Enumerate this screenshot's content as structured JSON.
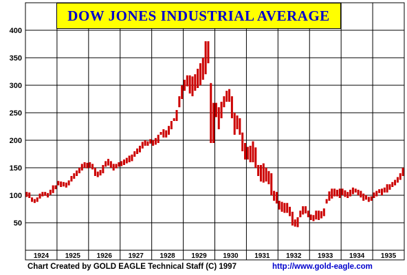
{
  "chart_data": {
    "type": "bar",
    "title": "DOW JONES INDUSTRIAL AVERAGE",
    "xlabel": "",
    "ylabel": "",
    "ylim": [
      0,
      400
    ],
    "yticks": [
      50,
      100,
      150,
      200,
      250,
      300,
      350,
      400
    ],
    "year_labels": [
      "1924",
      "1925",
      "1926",
      "1927",
      "1928",
      "1929",
      "1930",
      "1931",
      "1932",
      "1933",
      "1934",
      "1935"
    ],
    "grid": true,
    "legend": "none",
    "bar_color": "#cc0000",
    "title_bg": "#ffff00",
    "title_color": "#0000cc",
    "series": [
      {
        "values": [
          [
            97,
            106
          ],
          [
            95,
            105
          ],
          [
            88,
            96
          ],
          [
            86,
            93
          ],
          [
            88,
            96
          ],
          [
            94,
            103
          ],
          [
            98,
            106
          ],
          [
            99,
            106
          ],
          [
            96,
            104
          ],
          [
            101,
            110
          ],
          [
            104,
            118
          ],
          [
            111,
            118
          ],
          [
            118,
            126
          ],
          [
            115,
            125
          ],
          [
            116,
            124
          ],
          [
            114,
            123
          ],
          [
            118,
            127
          ],
          [
            125,
            135
          ],
          [
            130,
            140
          ],
          [
            135,
            145
          ],
          [
            140,
            150
          ],
          [
            145,
            157
          ],
          [
            150,
            160
          ],
          [
            149,
            159
          ],
          [
            150,
            160
          ],
          [
            147,
            157
          ],
          [
            135,
            150
          ],
          [
            133,
            143
          ],
          [
            136,
            146
          ],
          [
            140,
            155
          ],
          [
            152,
            162
          ],
          [
            154,
            166
          ],
          [
            150,
            162
          ],
          [
            145,
            157
          ],
          [
            149,
            157
          ],
          [
            152,
            160
          ],
          [
            153,
            162
          ],
          [
            155,
            165
          ],
          [
            158,
            168
          ],
          [
            160,
            172
          ],
          [
            162,
            174
          ],
          [
            170,
            180
          ],
          [
            175,
            185
          ],
          [
            178,
            190
          ],
          [
            185,
            197
          ],
          [
            190,
            200
          ],
          [
            190,
            198
          ],
          [
            194,
            202
          ],
          [
            190,
            200
          ],
          [
            192,
            204
          ],
          [
            195,
            210
          ],
          [
            210,
            215
          ],
          [
            205,
            220
          ],
          [
            205,
            218
          ],
          [
            210,
            226
          ],
          [
            220,
            235
          ],
          [
            235,
            240
          ],
          [
            235,
            255
          ],
          [
            260,
            280
          ],
          [
            275,
            300
          ],
          [
            290,
            310
          ],
          [
            298,
            318
          ],
          [
            285,
            318
          ],
          [
            280,
            316
          ],
          [
            290,
            320
          ],
          [
            295,
            330
          ],
          [
            300,
            340
          ],
          [
            310,
            350
          ],
          [
            320,
            380
          ],
          [
            340,
            380
          ],
          [
            195,
            304
          ],
          [
            195,
            268
          ],
          [
            242,
            268
          ],
          [
            220,
            260
          ],
          [
            240,
            270
          ],
          [
            260,
            280
          ],
          [
            270,
            290
          ],
          [
            270,
            293
          ],
          [
            240,
            280
          ],
          [
            210,
            250
          ],
          [
            220,
            245
          ],
          [
            210,
            240
          ],
          [
            180,
            214
          ],
          [
            165,
            195
          ],
          [
            165,
            188
          ],
          [
            160,
            190
          ],
          [
            160,
            198
          ],
          [
            150,
            187
          ],
          [
            135,
            155
          ],
          [
            125,
            155
          ],
          [
            123,
            158
          ],
          [
            125,
            150
          ],
          [
            120,
            144
          ],
          [
            100,
            140
          ],
          [
            90,
            108
          ],
          [
            85,
            106
          ],
          [
            74,
            90
          ],
          [
            70,
            88
          ],
          [
            68,
            86
          ],
          [
            68,
            86
          ],
          [
            62,
            79
          ],
          [
            45,
            70
          ],
          [
            43,
            56
          ],
          [
            42,
            60
          ],
          [
            60,
            72
          ],
          [
            65,
            80
          ],
          [
            67,
            80
          ],
          [
            60,
            72
          ],
          [
            55,
            65
          ],
          [
            53,
            64
          ],
          [
            56,
            72
          ],
          [
            55,
            72
          ],
          [
            58,
            71
          ],
          [
            62,
            76
          ],
          [
            85,
            93
          ],
          [
            90,
            107
          ],
          [
            94,
            112
          ],
          [
            98,
            112
          ],
          [
            98,
            110
          ],
          [
            95,
            112
          ],
          [
            100,
            112
          ],
          [
            97,
            109
          ],
          [
            95,
            106
          ],
          [
            98,
            110
          ],
          [
            102,
            114
          ],
          [
            105,
            112
          ],
          [
            100,
            110
          ],
          [
            96,
            108
          ],
          [
            90,
            103
          ],
          [
            92,
            100
          ],
          [
            88,
            97
          ],
          [
            90,
            98
          ],
          [
            95,
            105
          ],
          [
            98,
            108
          ],
          [
            104,
            111
          ],
          [
            100,
            112
          ],
          [
            105,
            114
          ],
          [
            105,
            120
          ],
          [
            110,
            120
          ],
          [
            115,
            124
          ],
          [
            118,
            128
          ],
          [
            123,
            133
          ],
          [
            128,
            140
          ],
          [
            135,
            150
          ]
        ]
      }
    ]
  },
  "footer": {
    "credit": "Chart Created by GOLD EAGLE Technical Staff (C) 1997",
    "url": "http://www.gold-eagle.com"
  }
}
